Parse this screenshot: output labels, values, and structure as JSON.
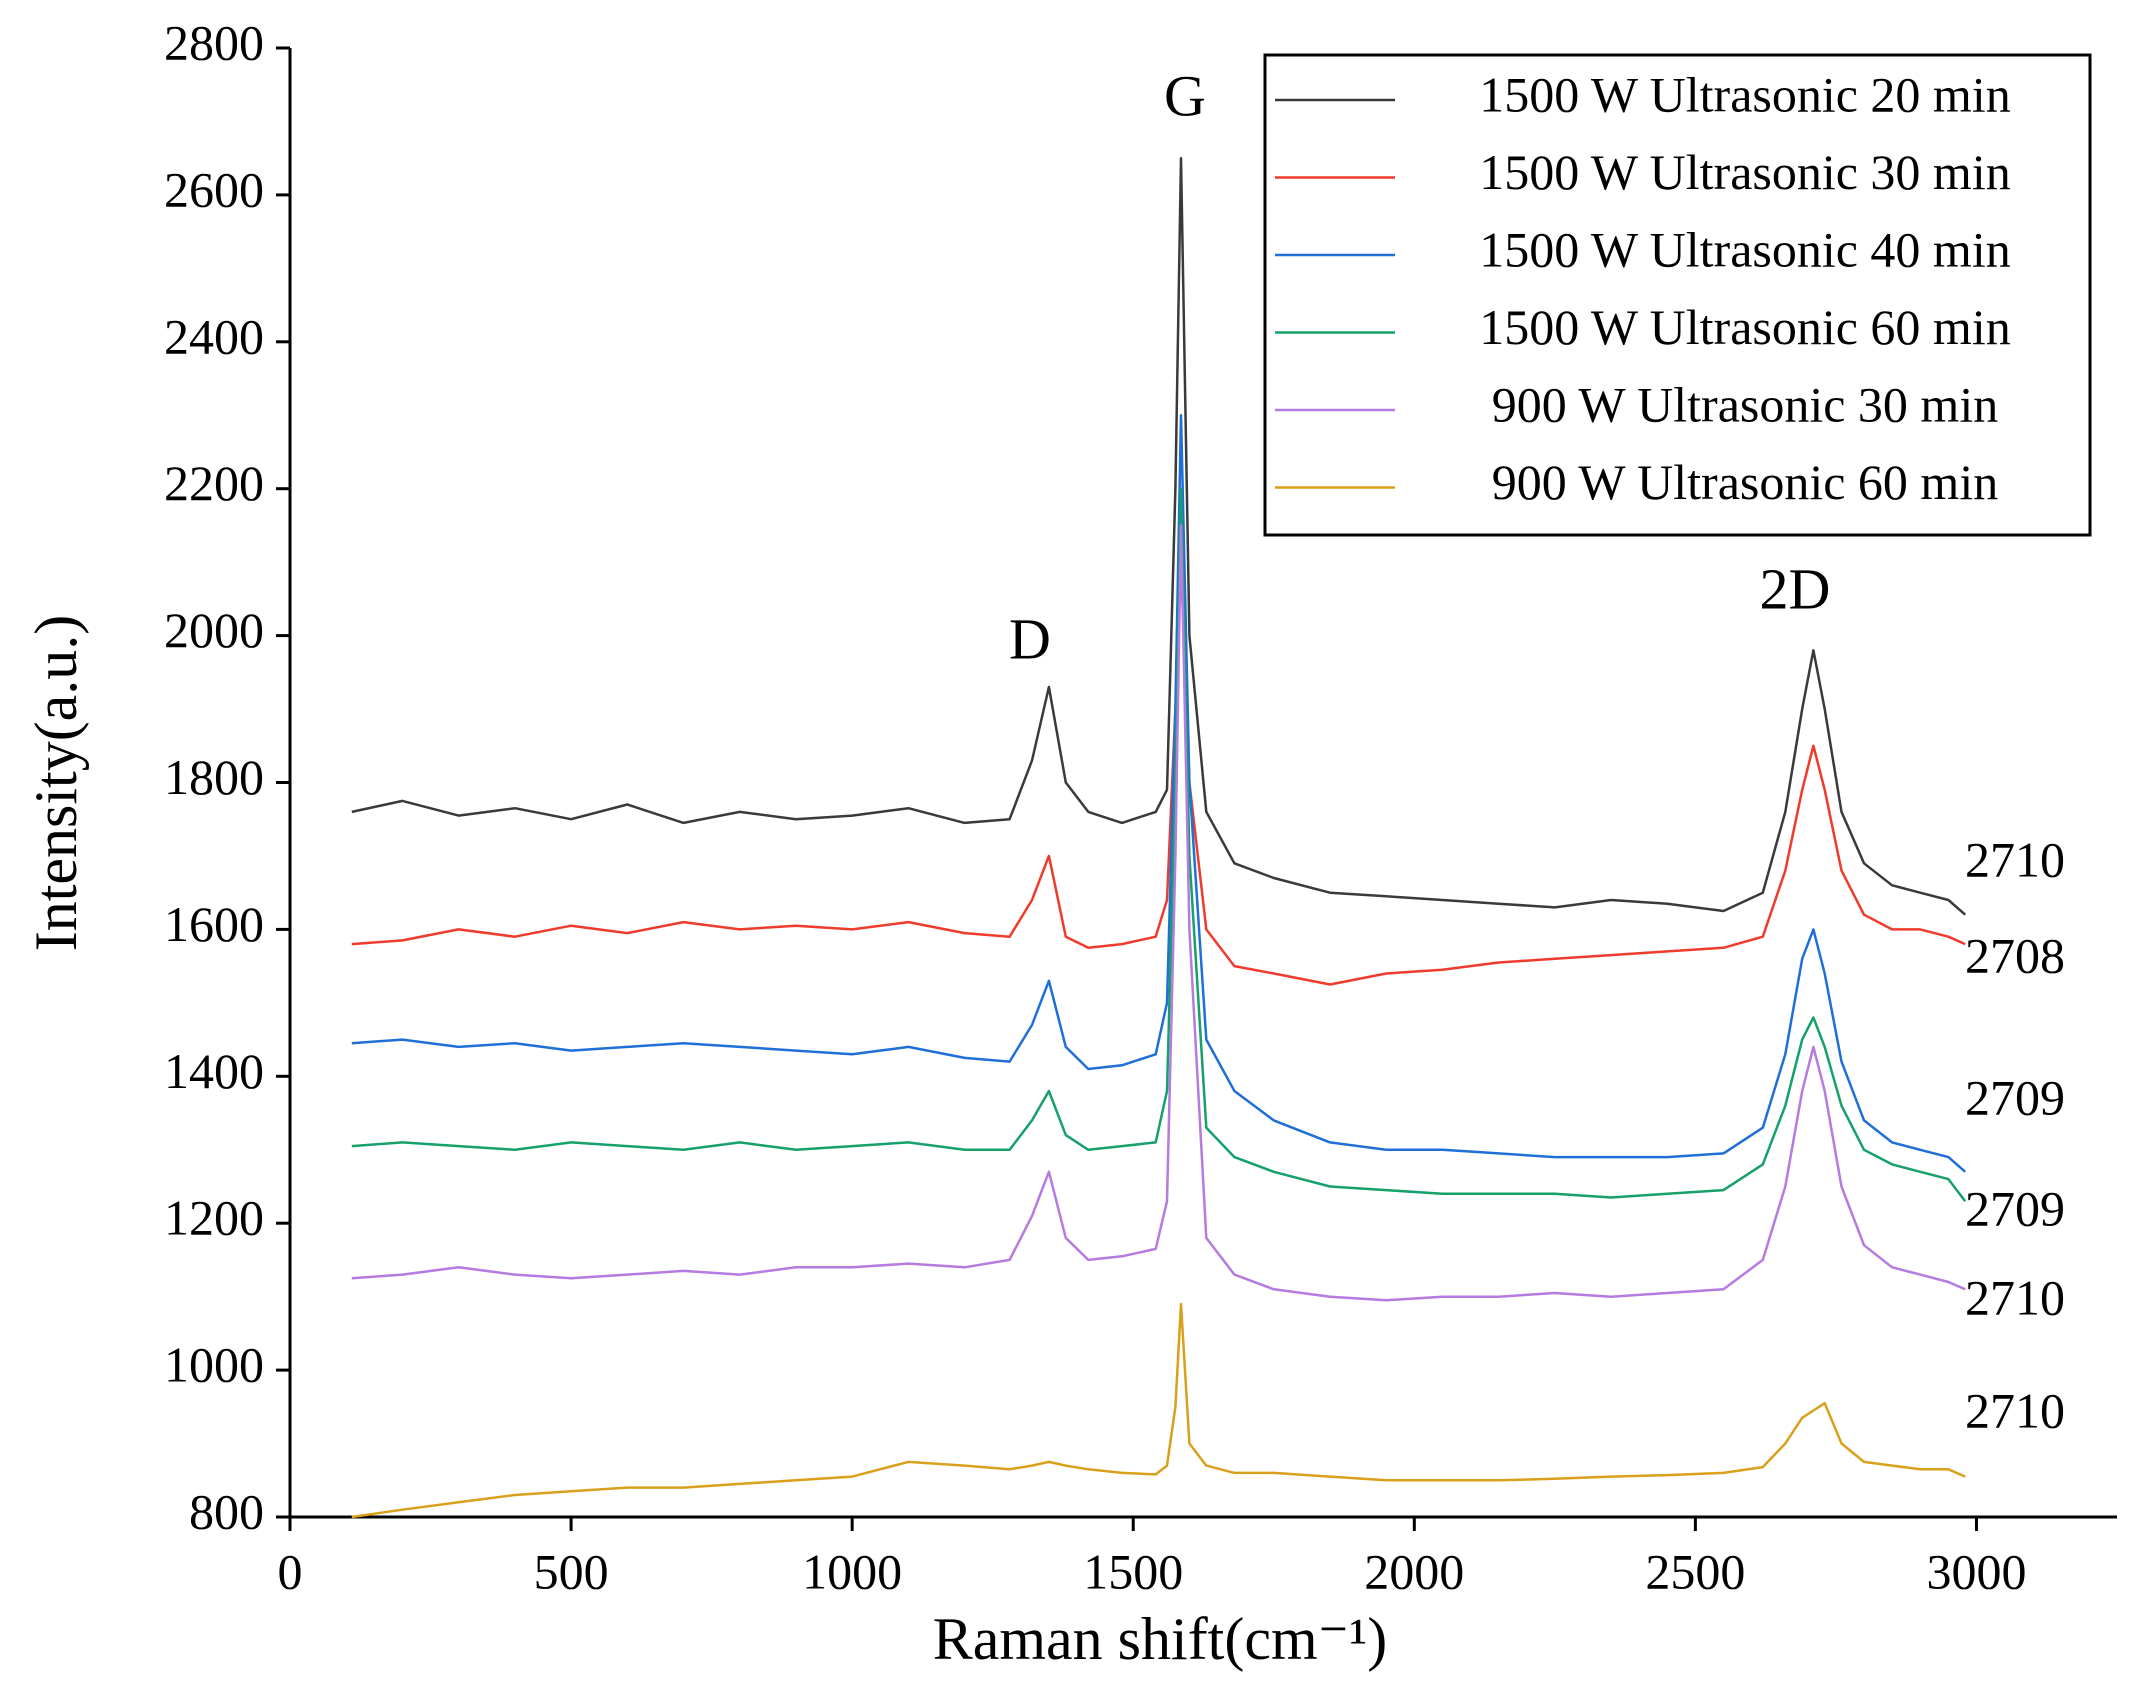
{
  "chart_data": {
    "type": "line",
    "x_label": "Raman shift(cm⁻¹)",
    "y_label": "Intensity(a.u.)",
    "x": [
      110,
      200,
      300,
      400,
      500,
      600,
      700,
      800,
      900,
      1000,
      1100,
      1200,
      1280,
      1320,
      1350,
      1380,
      1420,
      1480,
      1540,
      1560,
      1575,
      1585,
      1600,
      1630,
      1680,
      1750,
      1850,
      1950,
      2050,
      2150,
      2250,
      2350,
      2450,
      2550,
      2620,
      2660,
      2690,
      2710,
      2730,
      2760,
      2800,
      2850,
      2900,
      2950,
      2980
    ],
    "series": [
      {
        "name": "1500 W Ultrasonic 20 min",
        "color": "#3a3a3a",
        "values": [
          1760,
          1775,
          1755,
          1765,
          1750,
          1770,
          1745,
          1760,
          1750,
          1755,
          1765,
          1745,
          1750,
          1830,
          1930,
          1800,
          1760,
          1745,
          1760,
          1790,
          2200,
          2650,
          2000,
          1760,
          1690,
          1670,
          1650,
          1645,
          1640,
          1635,
          1630,
          1640,
          1635,
          1625,
          1650,
          1760,
          1900,
          1980,
          1900,
          1760,
          1690,
          1660,
          1650,
          1640,
          1620
        ]
      },
      {
        "name": "1500 W Ultrasonic 30 min",
        "color": "#ef3b2c",
        "values": [
          1580,
          1585,
          1600,
          1590,
          1605,
          1595,
          1610,
          1600,
          1605,
          1600,
          1610,
          1595,
          1590,
          1640,
          1700,
          1590,
          1575,
          1580,
          1590,
          1640,
          1900,
          2100,
          1800,
          1600,
          1550,
          1540,
          1525,
          1540,
          1545,
          1555,
          1560,
          1565,
          1570,
          1575,
          1590,
          1680,
          1790,
          1850,
          1790,
          1680,
          1620,
          1600,
          1600,
          1590,
          1580
        ]
      },
      {
        "name": "1500 W Ultrasonic 40 min",
        "color": "#1f6fd8",
        "values": [
          1445,
          1450,
          1440,
          1445,
          1435,
          1440,
          1445,
          1440,
          1435,
          1430,
          1440,
          1425,
          1420,
          1470,
          1530,
          1440,
          1410,
          1415,
          1430,
          1500,
          1900,
          2300,
          1800,
          1450,
          1380,
          1340,
          1310,
          1300,
          1300,
          1295,
          1290,
          1290,
          1290,
          1295,
          1330,
          1430,
          1560,
          1600,
          1540,
          1420,
          1340,
          1310,
          1300,
          1290,
          1270
        ]
      },
      {
        "name": "1500 W Ultrasonic 60 min",
        "color": "#16a06a",
        "values": [
          1305,
          1310,
          1305,
          1300,
          1310,
          1305,
          1300,
          1310,
          1300,
          1305,
          1310,
          1300,
          1300,
          1340,
          1380,
          1320,
          1300,
          1305,
          1310,
          1380,
          1800,
          2200,
          1700,
          1330,
          1290,
          1270,
          1250,
          1245,
          1240,
          1240,
          1240,
          1235,
          1240,
          1245,
          1280,
          1360,
          1450,
          1480,
          1440,
          1360,
          1300,
          1280,
          1270,
          1260,
          1230
        ]
      },
      {
        "name": "900 W Ultrasonic 30 min",
        "color": "#b57be0",
        "values": [
          1125,
          1130,
          1140,
          1130,
          1125,
          1130,
          1135,
          1130,
          1140,
          1140,
          1145,
          1140,
          1150,
          1210,
          1270,
          1180,
          1150,
          1155,
          1165,
          1230,
          1700,
          2150,
          1600,
          1180,
          1130,
          1110,
          1100,
          1095,
          1100,
          1100,
          1105,
          1100,
          1105,
          1110,
          1150,
          1250,
          1380,
          1440,
          1380,
          1250,
          1170,
          1140,
          1130,
          1120,
          1110
        ]
      },
      {
        "name": "900 W Ultrasonic 60 min",
        "color": "#d9a01c",
        "values": [
          800,
          810,
          820,
          830,
          835,
          840,
          840,
          845,
          850,
          855,
          875,
          870,
          865,
          870,
          875,
          870,
          865,
          860,
          858,
          870,
          950,
          1090,
          900,
          870,
          860,
          860,
          855,
          850,
          850,
          850,
          852,
          855,
          857,
          860,
          868,
          900,
          935,
          945,
          955,
          900,
          875,
          870,
          865,
          865,
          855
        ]
      }
    ],
    "xlim": [
      0,
      3250
    ],
    "xticks": [
      0,
      500,
      1000,
      1500,
      2000,
      2500,
      3000
    ],
    "ylim": [
      800,
      2800
    ],
    "yticks": [
      800,
      1000,
      1200,
      1400,
      1600,
      1800,
      2000,
      2200,
      2400,
      2600,
      2800
    ],
    "peak_annotations": [
      "D",
      "G",
      "2D"
    ],
    "peak_positions": [
      "2710",
      "2708",
      "2709",
      "2709",
      "2710",
      "2710"
    ],
    "legend_position": "upper right"
  }
}
